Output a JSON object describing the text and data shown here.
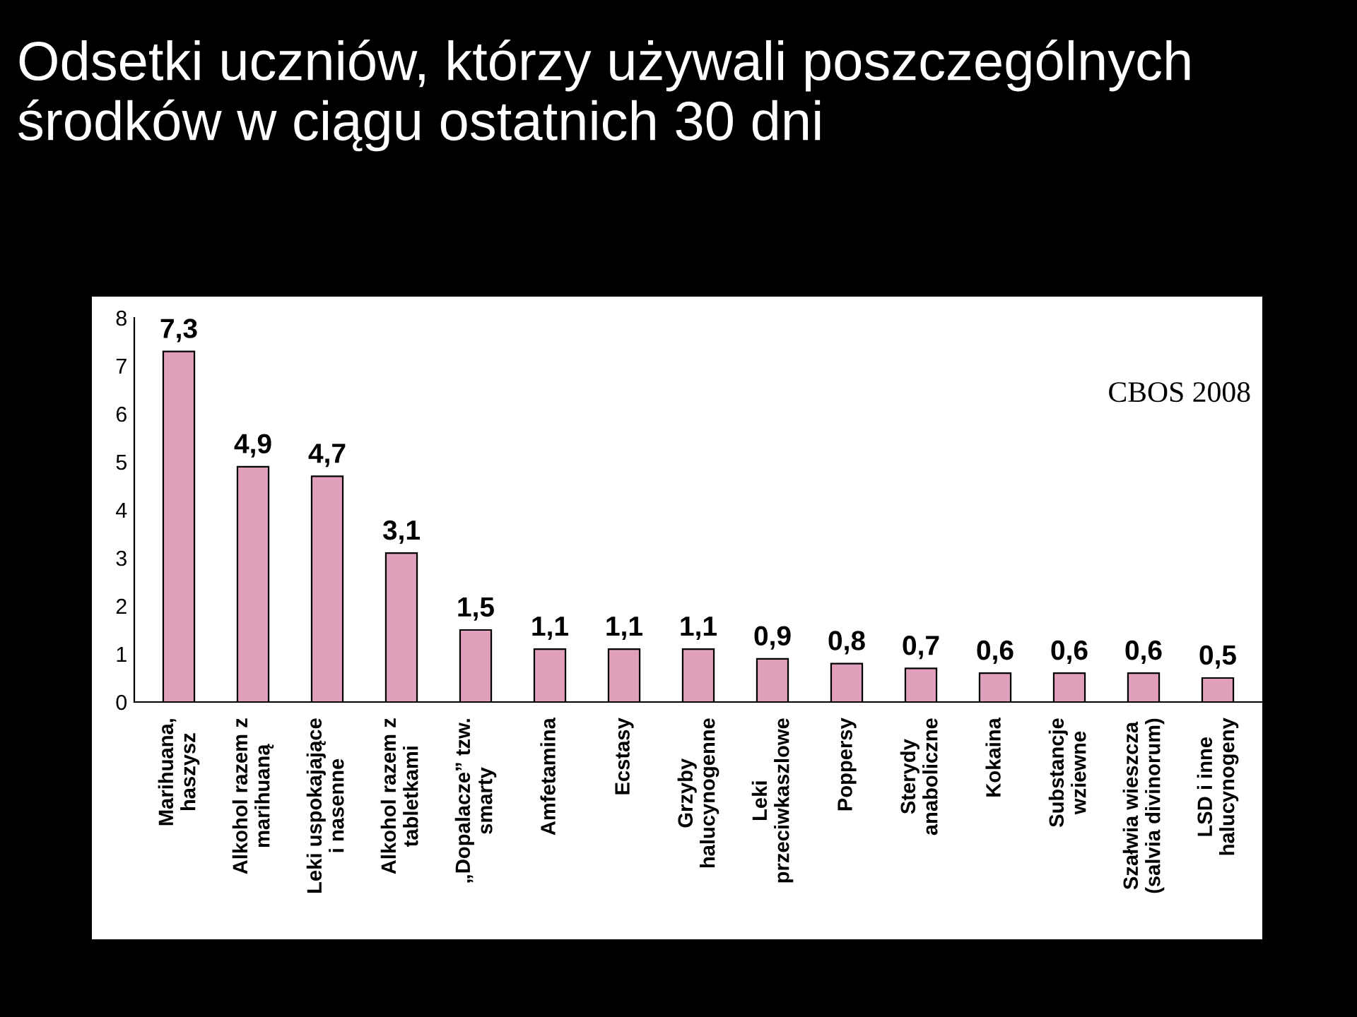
{
  "chart_data": {
    "type": "bar",
    "title": "Odsetki uczniów, którzy używali poszczególnych środków w ciągu ostatnich 30 dni",
    "categories": [
      "Marihuana,\nhaszysz",
      "Alkohol razem z\nmarihuaną",
      "Leki uspokajające\ni nasenne",
      "Alkohol razem z\ntabletkami",
      "„Dopalacze” tzw.\nsmarty",
      "Amfetamina",
      "Ecstasy",
      "Grzyby\nhalucynogenne",
      "Leki\nprzeciwkaszlowe",
      "Poppersy",
      "Sterydy\nanaboliczne",
      "Kokaina",
      "Substancje\nwziewne",
      "Szałwia wieszcza\n(salvia divinorum)",
      "LSD i inne\nhalucynogeny"
    ],
    "values": [
      7.3,
      4.9,
      4.7,
      3.1,
      1.5,
      1.1,
      1.1,
      1.1,
      0.9,
      0.8,
      0.7,
      0.6,
      0.6,
      0.6,
      0.5
    ],
    "value_labels": [
      "7,3",
      "4,9",
      "4,7",
      "3,1",
      "1,5",
      "1,1",
      "1,1",
      "1,1",
      "0,9",
      "0,8",
      "0,7",
      "0,6",
      "0,6",
      "0,6",
      "0,5"
    ],
    "color": "#e0a0bc",
    "ylim": [
      0,
      8
    ],
    "yticks": [
      0,
      1,
      2,
      3,
      4,
      5,
      6,
      7,
      8
    ],
    "grid": false,
    "annotations": [
      "CBOS 2008"
    ]
  }
}
